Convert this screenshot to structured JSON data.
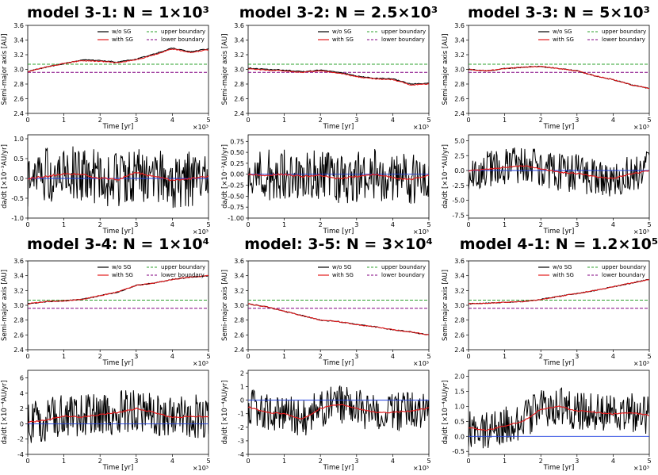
{
  "panels": [
    {
      "title": "model 3-1: N = 1×10³",
      "axis": {
        "top": {
          "ylabel": "Semi-major axis [AU]",
          "xlabel": "Time [yr]",
          "ylim": [
            2.4,
            3.6
          ],
          "yticks": [
            "2.4",
            "2.6",
            "2.8",
            "3.0",
            "3.2",
            "3.4",
            "3.6"
          ],
          "xticks": [
            "0",
            "1",
            "2",
            "3",
            "4",
            "5"
          ],
          "xlim": [
            0,
            5
          ],
          "xexp": "×10³"
        },
        "bottom": {
          "ylabel": "da/dt [×10⁻³AU/yr]",
          "xlabel": "Time [yr]",
          "ylim": [
            -1.0,
            1.1
          ],
          "yticks": [
            "-1.0",
            "-0.5",
            "0.0",
            "0.5",
            "1.0"
          ],
          "xticks": [
            "0",
            "1",
            "2",
            "3",
            "4",
            "5"
          ],
          "xlim": [
            0,
            5
          ],
          "xexp": "×10³"
        }
      }
    },
    {
      "title": "model 3-2: N = 2.5×10³",
      "axis": {
        "top": {
          "ylabel": "Semi-major axis [AU]",
          "xlabel": "Time [yr]",
          "ylim": [
            2.4,
            3.6
          ],
          "yticks": [
            "2.4",
            "2.6",
            "2.8",
            "3.0",
            "3.2",
            "3.4",
            "3.6"
          ],
          "xticks": [
            "0",
            "1",
            "2",
            "3",
            "4",
            "5"
          ],
          "xlim": [
            0,
            5
          ],
          "xexp": "×10³"
        },
        "bottom": {
          "ylabel": "da/dt [×10⁻³AU/yr]",
          "xlabel": "Time [yr]",
          "ylim": [
            -1.0,
            0.9
          ],
          "yticks": [
            "-1.00",
            "-0.75",
            "-0.50",
            "-0.25",
            "0.00",
            "0.25",
            "0.50",
            "0.75"
          ],
          "xticks": [
            "0",
            "1",
            "2",
            "3",
            "4",
            "5"
          ],
          "xlim": [
            0,
            5
          ],
          "xexp": "×10³"
        }
      }
    },
    {
      "title": "model 3-3: N = 5×10³",
      "axis": {
        "top": {
          "ylabel": "Semi-major axis [AU]",
          "xlabel": "Time [yr]",
          "ylim": [
            2.4,
            3.6
          ],
          "yticks": [
            "2.4",
            "2.6",
            "2.8",
            "3.0",
            "3.2",
            "3.4",
            "3.6"
          ],
          "xticks": [
            "0",
            "1",
            "2",
            "3",
            "4",
            "5"
          ],
          "xlim": [
            0,
            5
          ],
          "xexp": "×10³"
        },
        "bottom": {
          "ylabel": "da/dt [×10⁻⁴AU/yr]",
          "xlabel": "Time [yr]",
          "ylim": [
            -8.0,
            6.0
          ],
          "yticks": [
            "-7.5",
            "-5.0",
            "-2.5",
            "0.0",
            "2.5",
            "5.0"
          ],
          "xticks": [
            "0",
            "1",
            "2",
            "3",
            "4",
            "5"
          ],
          "xlim": [
            0,
            5
          ],
          "xexp": "×10³"
        }
      }
    },
    {
      "title": "model 3-4: N = 1×10⁴",
      "axis": {
        "top": {
          "ylabel": "Semi-major axis [AU]",
          "xlabel": "Time [yr]",
          "ylim": [
            2.4,
            3.6
          ],
          "yticks": [
            "2.4",
            "2.6",
            "2.8",
            "3.0",
            "3.2",
            "3.4",
            "3.6"
          ],
          "xticks": [
            "0",
            "1",
            "2",
            "3",
            "4",
            "5"
          ],
          "xlim": [
            0,
            5
          ],
          "xexp": "×10³"
        },
        "bottom": {
          "ylabel": "da/dt [×10⁻⁴AU/yr]",
          "xlabel": "Time [yr]",
          "ylim": [
            -4.0,
            7.0
          ],
          "yticks": [
            "-4",
            "-2",
            "0",
            "2",
            "4",
            "6"
          ],
          "xticks": [
            "0",
            "1",
            "2",
            "3",
            "4",
            "5"
          ],
          "xlim": [
            0,
            5
          ],
          "xexp": "×10³"
        }
      }
    },
    {
      "title": "model: 3-5: N = 3×10⁴",
      "axis": {
        "top": {
          "ylabel": "Semi-major axis [AU]",
          "xlabel": "Time [yr]",
          "ylim": [
            2.4,
            3.6
          ],
          "yticks": [
            "2.4",
            "2.6",
            "2.8",
            "3.0",
            "3.2",
            "3.4",
            "3.6"
          ],
          "xticks": [
            "0",
            "1",
            "2",
            "3",
            "4",
            "5"
          ],
          "xlim": [
            0,
            5
          ],
          "xexp": "×10³"
        },
        "bottom": {
          "ylabel": "da/dt [×10⁻⁴AU/yr]",
          "xlabel": "Time [yr]",
          "ylim": [
            -4.0,
            2.2
          ],
          "yticks": [
            "-4",
            "-3",
            "-2",
            "-1",
            "0",
            "1",
            "2"
          ],
          "xticks": [
            "0",
            "1",
            "2",
            "3",
            "4",
            "5"
          ],
          "xlim": [
            0,
            5
          ],
          "xexp": "×10³"
        }
      }
    },
    {
      "title": "model 4-1: N = 1.2×10⁵",
      "axis": {
        "top": {
          "ylabel": "Semi-major axis [AU]",
          "xlabel": "Time [yr]",
          "ylim": [
            2.4,
            3.6
          ],
          "yticks": [
            "2.4",
            "2.6",
            "2.8",
            "3.0",
            "3.2",
            "3.4",
            "3.6"
          ],
          "xticks": [
            "0",
            "1",
            "2",
            "3",
            "4",
            "5"
          ],
          "xlim": [
            0,
            5
          ],
          "xexp": "×10³"
        },
        "bottom": {
          "ylabel": "da/dt [×10⁻⁴AU/yr]",
          "xlabel": "Time [yr]",
          "ylim": [
            -0.6,
            2.2
          ],
          "yticks": [
            "-0.5",
            "0.0",
            "0.5",
            "1.0",
            "1.5",
            "2.0"
          ],
          "xticks": [
            "0",
            "1",
            "2",
            "3",
            "4",
            "5"
          ],
          "xlim": [
            0,
            5
          ],
          "xexp": "×10³"
        }
      }
    }
  ],
  "legend": {
    "wo_sg": "w/o SG",
    "with_sg": "with SG",
    "upper": "upper boundary",
    "lower": "lower boundary"
  },
  "colors": {
    "wo_sg": "#000000",
    "with_sg": "#e31a1c",
    "upper": "#2ca02c",
    "lower": "#800080",
    "zero": "#1f3fdf"
  },
  "chart_data": [
    {
      "type": "line",
      "title": "model 3-1: N = 1×10³ (semi-major axis)",
      "xlabel": "Time [yr] (×10³)",
      "ylabel": "Semi-major axis [AU]",
      "xlim": [
        0,
        5
      ],
      "ylim": [
        2.4,
        3.6
      ],
      "upper_boundary": 3.07,
      "lower_boundary": 2.96,
      "x": [
        0,
        0.5,
        1,
        1.5,
        2,
        2.5,
        3,
        3.5,
        4,
        4.5,
        5
      ],
      "series": [
        {
          "name": "w/o SG",
          "values": [
            2.97,
            3.03,
            3.08,
            3.13,
            3.12,
            3.1,
            3.14,
            3.21,
            3.29,
            3.24,
            3.28
          ]
        },
        {
          "name": "with SG",
          "values": [
            2.97,
            3.03,
            3.08,
            3.12,
            3.11,
            3.09,
            3.13,
            3.2,
            3.28,
            3.23,
            3.27
          ]
        }
      ]
    },
    {
      "type": "line",
      "title": "model 3-1 (da/dt)",
      "xlabel": "Time [yr] (×10³)",
      "ylabel": "da/dt [×10⁻³AU/yr]",
      "xlim": [
        0,
        5
      ],
      "ylim": [
        -1.0,
        1.1
      ],
      "amplitude": 0.55,
      "x": [
        0,
        0.5,
        1,
        1.5,
        2,
        2.5,
        3,
        3.5,
        4,
        4.5,
        5
      ],
      "series": [
        {
          "name": "smoothed",
          "values": [
            0.0,
            0.05,
            0.12,
            0.1,
            0.0,
            -0.03,
            0.15,
            0.05,
            -0.05,
            0.0,
            0.05
          ]
        }
      ]
    },
    {
      "type": "line",
      "title": "model 3-2: N = 2.5×10³ (semi-major axis)",
      "xlabel": "Time [yr] (×10³)",
      "ylabel": "Semi-major axis [AU]",
      "xlim": [
        0,
        5
      ],
      "ylim": [
        2.4,
        3.6
      ],
      "upper_boundary": 3.07,
      "lower_boundary": 2.96,
      "x": [
        0,
        0.5,
        1,
        1.5,
        2,
        2.5,
        3,
        3.5,
        4,
        4.5,
        5
      ],
      "series": [
        {
          "name": "w/o SG",
          "values": [
            3.02,
            3.0,
            2.99,
            2.97,
            2.99,
            2.96,
            2.91,
            2.88,
            2.87,
            2.8,
            2.81
          ]
        },
        {
          "name": "with SG",
          "values": [
            3.01,
            2.99,
            2.98,
            2.96,
            2.98,
            2.95,
            2.9,
            2.87,
            2.86,
            2.79,
            2.8
          ]
        }
      ]
    },
    {
      "type": "line",
      "title": "model 3-2 (da/dt)",
      "xlabel": "Time [yr] (×10³)",
      "ylabel": "da/dt [×10⁻³AU/yr]",
      "xlim": [
        0,
        5
      ],
      "ylim": [
        -1.0,
        0.9
      ],
      "amplitude": 0.45,
      "x": [
        0,
        0.5,
        1,
        1.5,
        2,
        2.5,
        3,
        3.5,
        4,
        4.5,
        5
      ],
      "series": [
        {
          "name": "smoothed",
          "values": [
            0.0,
            -0.02,
            0.0,
            -0.05,
            -0.02,
            -0.1,
            -0.05,
            0.0,
            -0.08,
            -0.12,
            -0.02
          ]
        }
      ]
    },
    {
      "type": "line",
      "title": "model 3-3: N = 5×10³ (semi-major axis)",
      "xlabel": "Time [yr] (×10³)",
      "ylabel": "Semi-major axis [AU]",
      "xlim": [
        0,
        5
      ],
      "ylim": [
        2.4,
        3.6
      ],
      "upper_boundary": 3.07,
      "lower_boundary": 2.96,
      "x": [
        0,
        0.5,
        1,
        1.5,
        2,
        2.5,
        3,
        3.5,
        4,
        4.5,
        5
      ],
      "series": [
        {
          "name": "w/o SG",
          "values": [
            3.0,
            2.98,
            3.01,
            3.03,
            3.04,
            3.01,
            2.98,
            2.91,
            2.86,
            2.79,
            2.74
          ]
        },
        {
          "name": "with SG",
          "values": [
            3.0,
            2.98,
            3.01,
            3.03,
            3.04,
            3.01,
            2.98,
            2.91,
            2.86,
            2.79,
            2.74
          ]
        }
      ]
    },
    {
      "type": "line",
      "title": "model 3-3 (da/dt)",
      "xlabel": "Time [yr] (×10³)",
      "ylabel": "da/dt [×10⁻⁴AU/yr]",
      "xlim": [
        0,
        5
      ],
      "ylim": [
        -8.0,
        6.0
      ],
      "amplitude": 2.5,
      "x": [
        0,
        0.5,
        1,
        1.5,
        2,
        2.5,
        3,
        3.5,
        4,
        4.5,
        5
      ],
      "series": [
        {
          "name": "smoothed",
          "values": [
            0.0,
            0.2,
            0.5,
            0.8,
            0.3,
            -0.3,
            -0.5,
            -1.0,
            -1.3,
            -0.6,
            0.0
          ]
        }
      ]
    },
    {
      "type": "line",
      "title": "model 3-4: N = 1×10⁴ (semi-major axis)",
      "xlabel": "Time [yr] (×10³)",
      "ylabel": "Semi-major axis [AU]",
      "xlim": [
        0,
        5
      ],
      "ylim": [
        2.4,
        3.6
      ],
      "upper_boundary": 3.07,
      "lower_boundary": 2.96,
      "x": [
        0,
        0.5,
        1,
        1.5,
        2,
        2.5,
        3,
        3.5,
        4,
        4.5,
        5
      ],
      "series": [
        {
          "name": "w/o SG",
          "values": [
            3.02,
            3.05,
            3.06,
            3.08,
            3.13,
            3.18,
            3.27,
            3.3,
            3.35,
            3.38,
            3.4
          ]
        },
        {
          "name": "with SG",
          "values": [
            3.02,
            3.05,
            3.06,
            3.08,
            3.13,
            3.18,
            3.27,
            3.3,
            3.35,
            3.38,
            3.4
          ]
        }
      ]
    },
    {
      "type": "line",
      "title": "model 3-4 (da/dt)",
      "xlabel": "Time [yr] (×10³)",
      "ylabel": "da/dt [×10⁻⁴AU/yr]",
      "xlim": [
        0,
        5
      ],
      "ylim": [
        -4.0,
        7.0
      ],
      "amplitude": 2.2,
      "x": [
        0,
        0.5,
        1,
        1.5,
        2,
        2.5,
        3,
        3.5,
        4,
        4.5,
        5
      ],
      "series": [
        {
          "name": "smoothed",
          "values": [
            0.2,
            0.5,
            1.0,
            0.9,
            1.2,
            1.5,
            2.0,
            1.5,
            0.8,
            1.0,
            0.9
          ]
        }
      ]
    },
    {
      "type": "line",
      "title": "model: 3-5: N = 3×10⁴ (semi-major axis)",
      "xlabel": "Time [yr] (×10³)",
      "ylabel": "Semi-major axis [AU]",
      "xlim": [
        0,
        5
      ],
      "ylim": [
        2.4,
        3.6
      ],
      "upper_boundary": 3.07,
      "lower_boundary": 2.96,
      "x": [
        0,
        0.5,
        1,
        1.5,
        2,
        2.5,
        3,
        3.5,
        4,
        4.5,
        5
      ],
      "series": [
        {
          "name": "w/o SG",
          "values": [
            3.02,
            2.98,
            2.92,
            2.86,
            2.8,
            2.78,
            2.74,
            2.71,
            2.67,
            2.64,
            2.6
          ]
        },
        {
          "name": "with SG",
          "values": [
            3.02,
            2.98,
            2.92,
            2.86,
            2.8,
            2.78,
            2.74,
            2.71,
            2.67,
            2.64,
            2.6
          ]
        }
      ]
    },
    {
      "type": "line",
      "title": "model 3-5 (da/dt)",
      "xlabel": "Time [yr] (×10³)",
      "ylabel": "da/dt [×10⁻⁴AU/yr]",
      "xlim": [
        0,
        5
      ],
      "ylim": [
        -4.0,
        2.2
      ],
      "amplitude": 1.1,
      "x": [
        0,
        0.5,
        1,
        1.5,
        2,
        2.5,
        3,
        3.5,
        4,
        4.5,
        5
      ],
      "series": [
        {
          "name": "smoothed",
          "values": [
            -0.5,
            -0.9,
            -1.0,
            -1.4,
            -0.6,
            -0.3,
            -0.6,
            -0.9,
            -0.9,
            -0.8,
            -0.6
          ]
        }
      ]
    },
    {
      "type": "line",
      "title": "model 4-1: N = 1.2×10⁵ (semi-major axis)",
      "xlabel": "Time [yr] (×10³)",
      "ylabel": "Semi-major axis [AU]",
      "xlim": [
        0,
        5
      ],
      "ylim": [
        2.4,
        3.6
      ],
      "upper_boundary": 3.07,
      "lower_boundary": 2.96,
      "x": [
        0,
        0.5,
        1,
        1.5,
        2,
        2.5,
        3,
        3.5,
        4,
        4.5,
        5
      ],
      "series": [
        {
          "name": "w/o SG",
          "values": [
            3.02,
            3.03,
            3.04,
            3.05,
            3.08,
            3.12,
            3.16,
            3.2,
            3.25,
            3.3,
            3.35
          ]
        },
        {
          "name": "with SG",
          "values": [
            3.02,
            3.03,
            3.04,
            3.05,
            3.08,
            3.12,
            3.16,
            3.2,
            3.25,
            3.3,
            3.35
          ]
        }
      ]
    },
    {
      "type": "line",
      "title": "model 4-1 (da/dt)",
      "xlabel": "Time [yr] (×10³)",
      "ylabel": "da/dt [×10⁻⁴AU/yr]",
      "xlim": [
        0,
        5
      ],
      "ylim": [
        -0.6,
        2.2
      ],
      "amplitude": 0.5,
      "x": [
        0,
        0.5,
        1,
        1.5,
        2,
        2.5,
        3,
        3.5,
        4,
        4.5,
        5
      ],
      "series": [
        {
          "name": "smoothed",
          "values": [
            0.3,
            0.2,
            0.35,
            0.5,
            0.9,
            1.0,
            0.85,
            0.8,
            0.75,
            0.8,
            0.7
          ]
        }
      ]
    }
  ]
}
